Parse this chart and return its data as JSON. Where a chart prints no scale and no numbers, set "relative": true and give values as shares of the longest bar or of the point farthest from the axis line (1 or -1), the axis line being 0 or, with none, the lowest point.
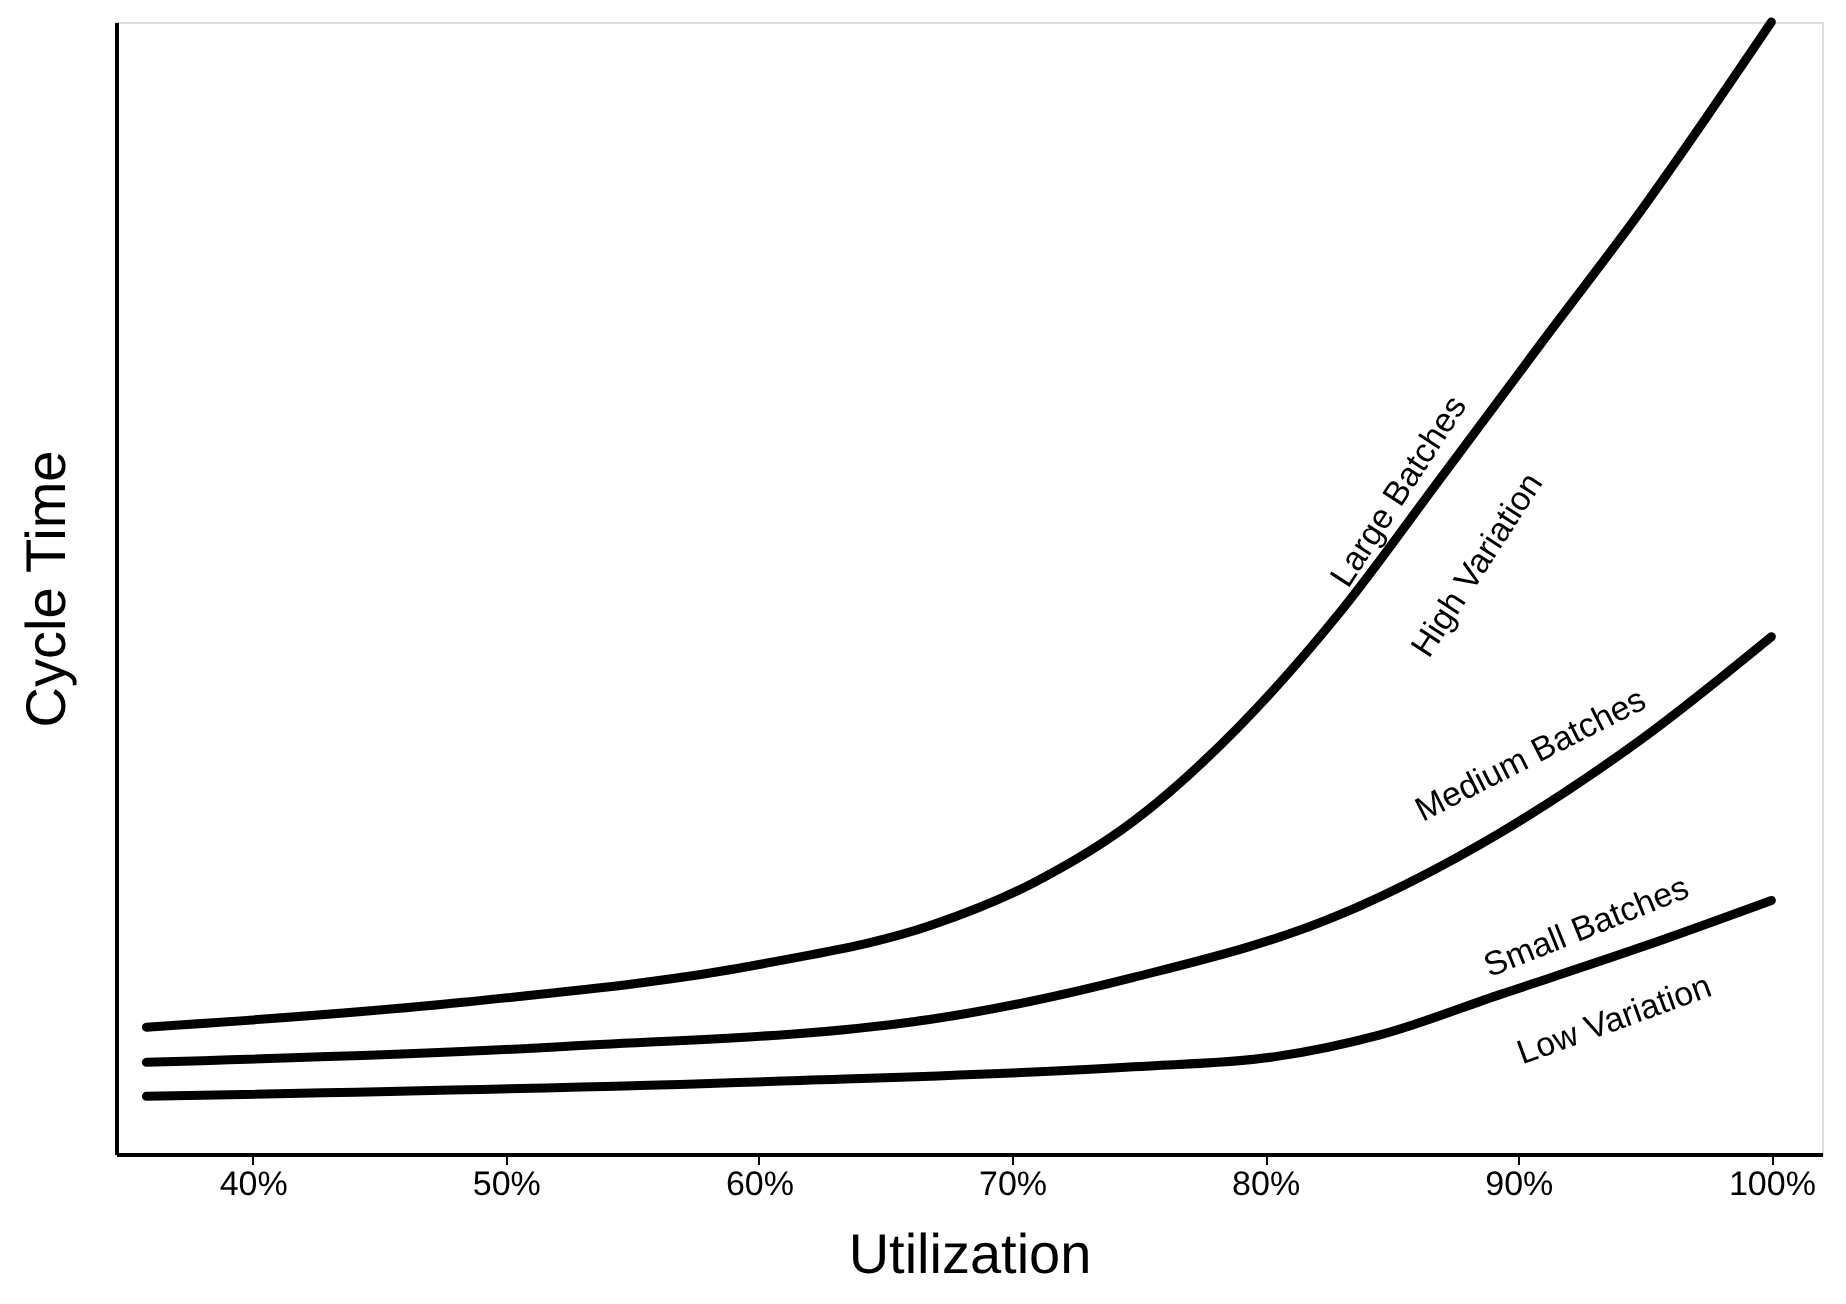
{
  "chart_data": {
    "type": "line",
    "relative": true,
    "xlabel": "Utilization",
    "ylabel": "Cycle Time",
    "xlim": [
      34.6,
      102
    ],
    "xticks": [
      {
        "value": 40,
        "label": "40%"
      },
      {
        "value": 50,
        "label": "50%"
      },
      {
        "value": 60,
        "label": "60%"
      },
      {
        "value": 70,
        "label": "70%"
      },
      {
        "value": 80,
        "label": "80%"
      },
      {
        "value": 90,
        "label": "90%"
      },
      {
        "value": 100,
        "label": "100%"
      }
    ],
    "grid": false,
    "marker": "none",
    "line_style": "solid",
    "series": [
      {
        "color": "#000000",
        "x": [
          35.8,
          48.3,
          60.4,
          66.8,
          70.8,
          74.8,
          78.9,
          82.9,
          86.9,
          90.9,
          94.9,
          100
        ],
        "values": [
          0.112,
          0.134,
          0.169,
          0.202,
          0.239,
          0.294,
          0.376,
          0.477,
          0.596,
          0.716,
          0.835,
          1
        ]
      },
      {
        "color": "#000000",
        "x": [
          35.8,
          52.3,
          66.8,
          74.8,
          82.9,
          89.3,
          94.9,
          100
        ],
        "values": [
          0.081,
          0.095,
          0.119,
          0.156,
          0.211,
          0.284,
          0.367,
          0.457
        ]
      },
      {
        "color": "#000000",
        "x": [
          35.8,
          60.4,
          74.8,
          80.4,
          84.5,
          89.3,
          94.9,
          100
        ],
        "values": [
          0.051,
          0.064,
          0.077,
          0.086,
          0.105,
          0.141,
          0.183,
          0.224
        ]
      }
    ],
    "annotations": [
      "Large Batches",
      "High Variation",
      "Medium Batches",
      "Small Batches",
      "Low Variation"
    ]
  }
}
